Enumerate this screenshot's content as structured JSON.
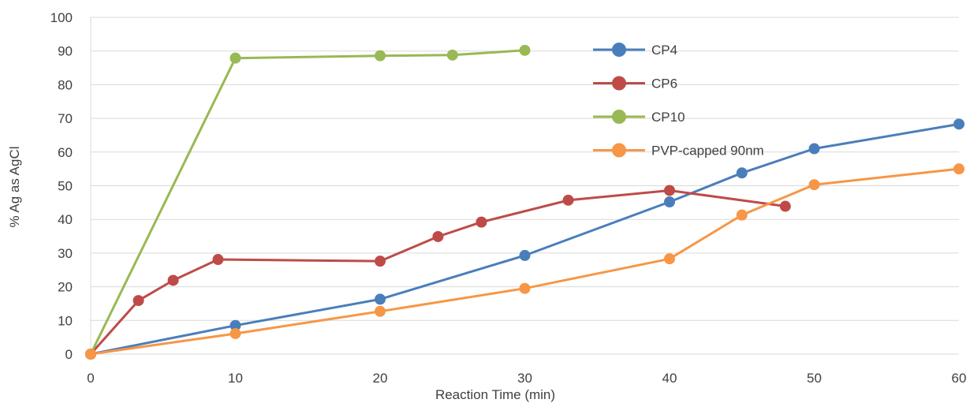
{
  "chart_data": {
    "type": "scatter",
    "xlabel": "Reaction Time (min)",
    "ylabel": "% Ag as AgCl",
    "xlim": [
      0,
      60
    ],
    "ylim": [
      0,
      100
    ],
    "x_ticks": [
      "0",
      "10",
      "20",
      "30",
      "40",
      "50",
      "60"
    ],
    "y_ticks": [
      "0",
      "10",
      "20",
      "30",
      "40",
      "50",
      "60",
      "70",
      "80",
      "90",
      "100"
    ],
    "grid": "horizontal",
    "legend_position": "upper-right",
    "series": [
      {
        "name": "CP4",
        "color": "#4a7ebb",
        "points": [
          [
            0,
            0
          ],
          [
            10,
            8.5
          ],
          [
            20,
            16.3
          ],
          [
            30,
            29.3
          ],
          [
            40,
            45.2
          ],
          [
            45,
            53.8
          ],
          [
            50,
            61
          ],
          [
            60,
            68.3
          ]
        ]
      },
      {
        "name": "CP6",
        "color": "#be4b48",
        "points": [
          [
            0,
            0
          ],
          [
            3.3,
            15.9
          ],
          [
            5.7,
            21.9
          ],
          [
            8.8,
            28.1
          ],
          [
            20,
            27.6
          ],
          [
            24,
            34.9
          ],
          [
            27,
            39.2
          ],
          [
            33,
            45.7
          ],
          [
            40,
            48.6
          ],
          [
            48,
            43.9
          ]
        ]
      },
      {
        "name": "CP10",
        "color": "#98b954",
        "points": [
          [
            0,
            0
          ],
          [
            10,
            87.9
          ],
          [
            20,
            88.6
          ],
          [
            25,
            88.8
          ],
          [
            30,
            90.2
          ]
        ]
      },
      {
        "name": "PVP-capped 90nm",
        "color": "#f79646",
        "points": [
          [
            0,
            0
          ],
          [
            10,
            6.1
          ],
          [
            20,
            12.7
          ],
          [
            30,
            19.5
          ],
          [
            40,
            28.3
          ],
          [
            45,
            41.3
          ],
          [
            50,
            50.3
          ],
          [
            60,
            55
          ]
        ]
      }
    ]
  }
}
